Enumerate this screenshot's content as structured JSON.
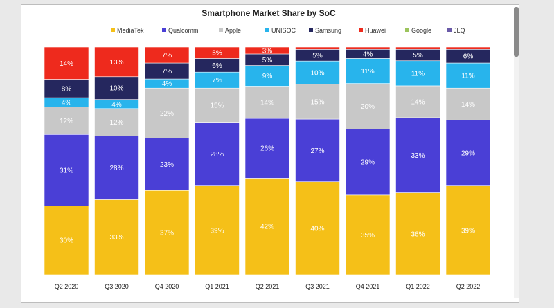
{
  "chart_data": {
    "type": "bar",
    "stacked": true,
    "title": "Smartphone Market Share by SoC",
    "xlabel": "",
    "ylabel": "",
    "ylim": [
      0,
      100
    ],
    "legend_position": "top",
    "categories": [
      "Q2 2020",
      "Q3 2020",
      "Q4 2020",
      "Q1 2021",
      "Q2 2021",
      "Q3 2021",
      "Q4 2021",
      "Q1 2022",
      "Q2 2022"
    ],
    "series": [
      {
        "name": "MediaTek",
        "color": "#f5c018",
        "values": [
          30,
          33,
          37,
          39,
          42,
          40,
          35,
          36,
          39
        ]
      },
      {
        "name": "Qualcomm",
        "color": "#4a3fd6",
        "values": [
          31,
          28,
          23,
          28,
          26,
          27,
          29,
          33,
          29
        ]
      },
      {
        "name": "Apple",
        "color": "#c8c8c8",
        "values": [
          12,
          12,
          22,
          15,
          14,
          15,
          20,
          14,
          14
        ]
      },
      {
        "name": "UNISOC",
        "color": "#28b4ec",
        "values": [
          4,
          4,
          4,
          7,
          9,
          10,
          11,
          11,
          11
        ]
      },
      {
        "name": "Samsung",
        "color": "#25275e",
        "values": [
          8,
          10,
          7,
          6,
          5,
          5,
          4,
          5,
          6
        ]
      },
      {
        "name": "Huawei",
        "color": "#ee2a1d",
        "values": [
          14,
          13,
          7,
          5,
          3,
          1,
          1,
          1,
          1
        ]
      },
      {
        "name": "Google",
        "color": "#9cc45c",
        "values": [
          0,
          0,
          0,
          0,
          0,
          0,
          0,
          0,
          0
        ]
      },
      {
        "name": "JLQ",
        "color": "#6a5aa8",
        "values": [
          0,
          0,
          0,
          0,
          0,
          0,
          0,
          0,
          0
        ]
      }
    ],
    "data_labels": [
      [
        "30%",
        "31%",
        "12%",
        "4%",
        "8%",
        "14%"
      ],
      [
        "33%",
        "28%",
        "12%",
        "4%",
        "10%",
        "13%"
      ],
      [
        "37%",
        "23%",
        "22%",
        "4%",
        "7%",
        "7%"
      ],
      [
        "39%",
        "28%",
        "15%",
        "7%",
        "6%",
        "5%"
      ],
      [
        "42%",
        "26%",
        "14%",
        "9%",
        "5%",
        "3%"
      ],
      [
        "40%",
        "27%",
        "15%",
        "10%",
        "5%",
        ""
      ],
      [
        "35%",
        "29%",
        "20%",
        "11%",
        "4%",
        ""
      ],
      [
        "36%",
        "33%",
        "14%",
        "11%",
        "5%",
        ""
      ],
      [
        "39%",
        "29%",
        "14%",
        "11%",
        "6%",
        ""
      ]
    ]
  }
}
